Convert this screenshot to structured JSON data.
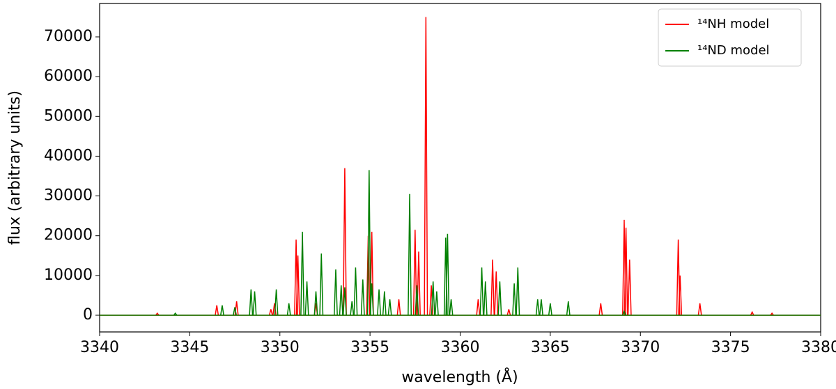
{
  "chart_data": {
    "type": "line",
    "x_label": "wavelength (Å)",
    "y_label": "flux (arbitrary units)",
    "xlim": [
      3340,
      3380
    ],
    "xticks": [
      3340,
      3345,
      3350,
      3355,
      3360,
      3365,
      3370,
      3375,
      3380
    ],
    "ylim": [
      -4200,
      78400
    ],
    "yticks": [
      0,
      10000,
      20000,
      30000,
      40000,
      50000,
      60000,
      70000
    ],
    "grid": false,
    "legend": "upper right",
    "series": [
      {
        "name": "¹⁴NH model",
        "color": "#ff0000",
        "x": [
          3343.2,
          3346.5,
          3347.6,
          3349.5,
          3349.7,
          3350.9,
          3351.0,
          3352.0,
          3353.6,
          3354.9,
          3355.1,
          3356.6,
          3357.5,
          3357.7,
          3358.1,
          3358.4,
          3361.0,
          3361.8,
          3362.0,
          3362.7,
          3367.8,
          3369.1,
          3369.2,
          3369.4,
          3372.1,
          3372.2,
          3373.3,
          3376.2,
          3377.3
        ],
        "values": [
          500,
          2500,
          3500,
          1500,
          3000,
          19000,
          15000,
          3000,
          37000,
          20000,
          21000,
          4000,
          21500,
          16000,
          75000,
          7500,
          4000,
          14000,
          11000,
          1500,
          3000,
          24000,
          22000,
          14000,
          19000,
          10000,
          3000,
          800,
          500
        ]
      },
      {
        "name": "¹⁴ND model",
        "color": "#008000",
        "x": [
          3344.2,
          3346.8,
          3347.5,
          3348.4,
          3348.6,
          3349.8,
          3350.5,
          3351.25,
          3351.5,
          3352.0,
          3352.3,
          3353.1,
          3353.4,
          3353.6,
          3354.0,
          3354.2,
          3354.6,
          3354.95,
          3355.1,
          3355.5,
          3355.8,
          3356.1,
          3357.2,
          3357.6,
          3358.5,
          3358.7,
          3359.2,
          3359.3,
          3359.5,
          3361.2,
          3361.4,
          3362.2,
          3363.0,
          3363.2,
          3364.3,
          3364.5,
          3365.0,
          3366.0,
          3369.1
        ],
        "values": [
          500,
          2500,
          2000,
          6500,
          6000,
          6500,
          3000,
          21000,
          8500,
          6000,
          15500,
          11500,
          7500,
          7000,
          3500,
          12000,
          9000,
          36500,
          8000,
          6500,
          6000,
          4000,
          30500,
          7500,
          8500,
          6000,
          19500,
          20500,
          4000,
          12000,
          8500,
          8500,
          8000,
          12000,
          4000,
          4000,
          3000,
          3500,
          1000
        ]
      }
    ]
  }
}
